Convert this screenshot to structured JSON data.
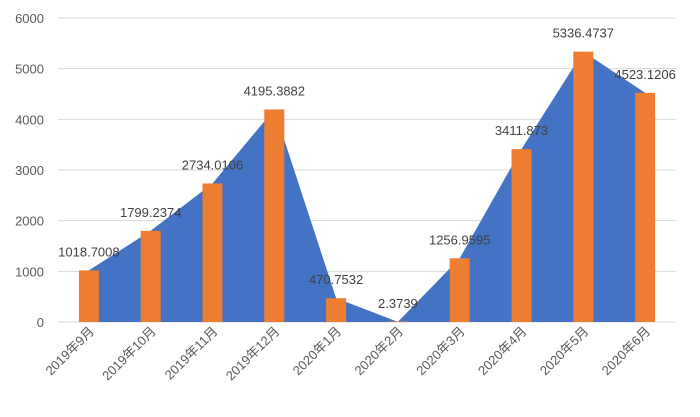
{
  "chart_data": {
    "type": "bar",
    "categories": [
      "2019年9月",
      "2019年10月",
      "2019年11月",
      "2019年12月",
      "2020年1月",
      "2020年2月",
      "2020年3月",
      "2020年4月",
      "2020年5月",
      "2020年6月"
    ],
    "series": [
      {
        "type": "area",
        "values": [
          1018.7008,
          1799.2374,
          2734.0106,
          4195.3882,
          470.7532,
          2.3739,
          1256.9595,
          3411.873,
          5336.4737,
          4523.1206
        ],
        "color": "#4472c4"
      },
      {
        "type": "bar",
        "values": [
          1018.7008,
          1799.2374,
          2734.0106,
          4195.3882,
          470.7532,
          2.3739,
          1256.9595,
          3411.873,
          5336.4737,
          4523.1206
        ],
        "color": "#ed7d31"
      }
    ],
    "data_labels": [
      "1018.7008",
      "1799.2374",
      "2734.0106",
      "4195.3882",
      "470.7532",
      "2.3739",
      "1256.9595",
      "3411.873",
      "5336.4737",
      "4523.1206"
    ],
    "y_ticks": [
      "0",
      "1000",
      "2000",
      "3000",
      "4000",
      "5000",
      "6000"
    ],
    "ylim": [
      0,
      6000
    ],
    "grid": true,
    "legend": "none"
  }
}
